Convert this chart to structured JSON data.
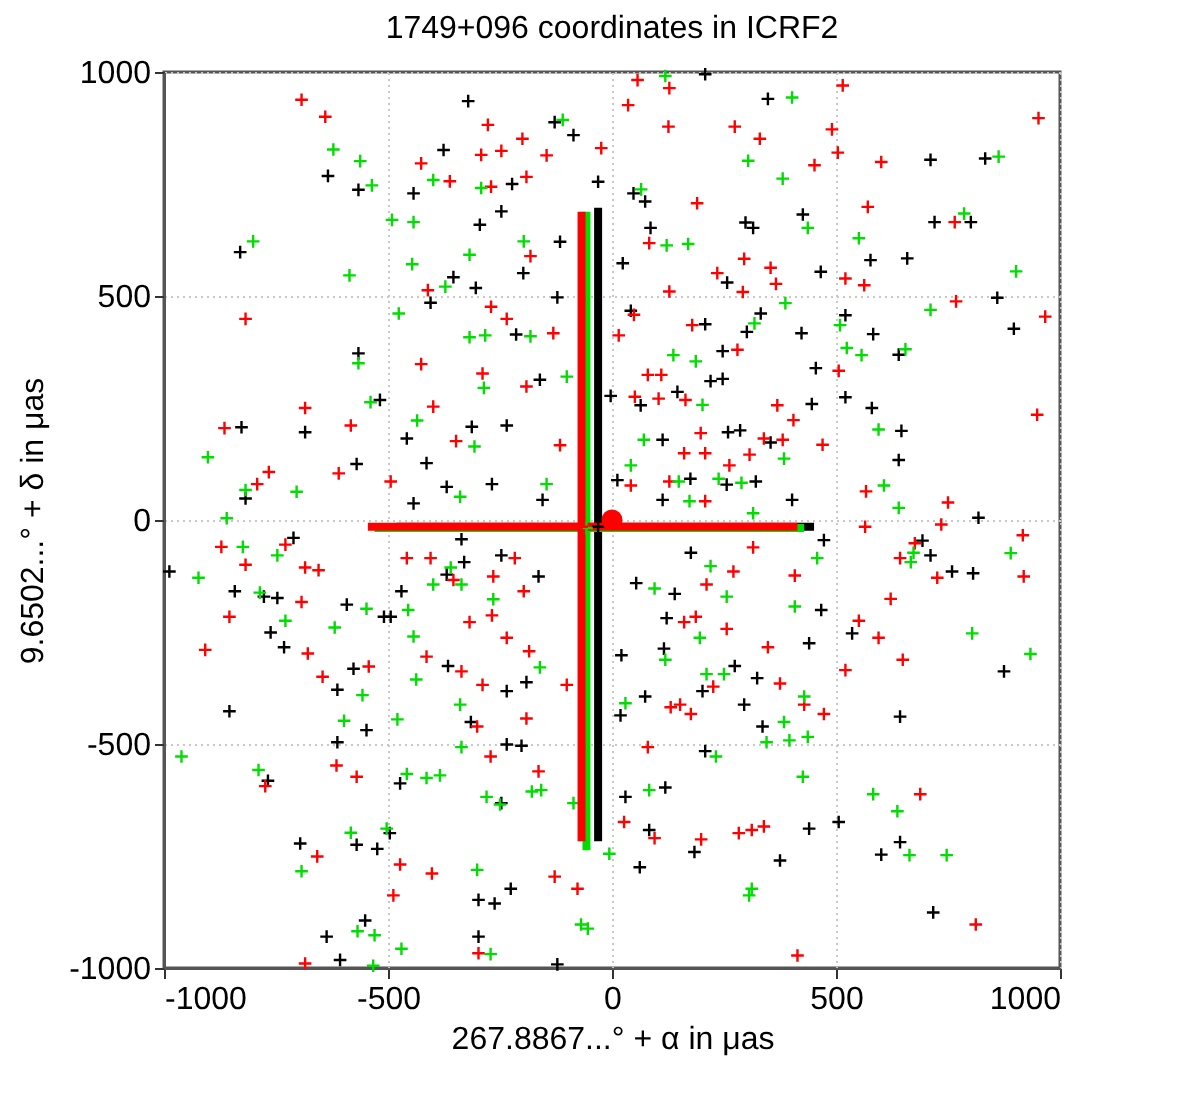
{
  "chart_data": {
    "type": "scatter",
    "title": "1749+096 coordinates in ICRF2",
    "xlabel": "267.8867...° + α in μas",
    "ylabel": "9.6502...° + δ in μas",
    "xlim": [
      -1000,
      1000
    ],
    "ylim": [
      -1000,
      1000
    ],
    "xticks": [
      -1000,
      -500,
      0,
      500,
      1000
    ],
    "yticks": [
      -1000,
      -500,
      0,
      500,
      1000
    ],
    "grid": true,
    "marker": "cross",
    "series": [
      {
        "color": "#000000",
        "x": [
          -321,
          -376,
          -634,
          -566,
          -830,
          -443,
          -223,
          -247,
          -295,
          -116,
          -198,
          -86,
          -128,
          -31,
          -354,
          -304,
          -405,
          -214,
          -566,
          -518,
          -685,
          -827,
          -818,
          -570,
          -458,
          -313,
          -235,
          -161,
          -414,
          -369,
          -443,
          -268,
          -155,
          -122,
          208,
          348,
          48,
          74,
          86,
          298,
          315,
          426,
          24,
          257,
          466,
          711,
          833,
          720,
          801,
          577,
          659,
          860,
          897,
          42,
          332,
          208,
          301,
          423,
          521,
          583,
          247,
          455,
          640,
          220,
          247,
          146,
          446,
          521,
          580,
          -3,
          64,
          259,
          286,
          354,
          646,
          640,
          113,
          175,
          321,
          256,
          113,
          402,
          12,
          818,
          -988,
          -842,
          -777,
          -747,
          -762,
          -732,
          -592,
          -577,
          -613,
          -854,
          -548,
          -613,
          -509,
          -494,
          -470,
          -768,
          -473,
          -696,
          -570,
          -524,
          -496,
          -637,
          -607,
          -551,
          -298,
          -298,
          -262,
          -226,
          -122,
          -235,
          -235,
          -202,
          -247,
          -315,
          -366,
          -191,
          -369,
          -330,
          -247,
          -164,
          -711,
          -336,
          473,
          693,
          711,
          759,
          806,
          536,
          467,
          440,
          274,
          324,
          295,
          336,
          202,
          122,
          116,
          21,
          74,
          19,
          208,
          30,
          119,
          83,
          184,
          62,
          375,
          506,
          440,
          643,
          601,
          717,
          875,
          643,
          176,
          54,
          140
        ],
        "values": [
          935,
          826,
          768,
          737,
          598,
          729,
          750,
          689,
          659,
          621,
          551,
          859,
          888,
          755,
          542,
          518,
          485,
          414,
          372,
          268,
          196,
          207,
          48,
          125,
          182,
          208,
          211,
          313,
          127,
          74,
          37,
          80,
          45,
          497,
          995,
          940,
          729,
          711,
          652,
          664,
          652,
          682,
          573,
          530,
          554,
          804,
          807,
          665,
          665,
          580,
          584,
          496,
          427,
          467,
          461,
          437,
          420,
          417,
          457,
          415,
          377,
          339,
          369,
          310,
          315,
          286,
          259,
          274,
          250,
          277,
          256,
          196,
          200,
          173,
          199,
          134,
          179,
          92,
          86,
          79,
          45,
          45,
          89,
          5,
          -115,
          -159,
          -171,
          -174,
          -251,
          -284,
          -189,
          -332,
          -379,
          -427,
          -469,
          -496,
          -216,
          -216,
          -159,
          -582,
          -588,
          -722,
          -725,
          -734,
          -699,
          -930,
          -982,
          -894,
          -930,
          -848,
          -856,
          -823,
          -992,
          -382,
          -501,
          -504,
          -632,
          -451,
          -326,
          -362,
          -122,
          -94,
          -79,
          -126,
          -40,
          -43,
          -45,
          -46,
          -79,
          -115,
          -119,
          -253,
          -201,
          -275,
          -326,
          -353,
          -412,
          -461,
          -382,
          -219,
          -287,
          -302,
          -394,
          -436,
          -516,
          -618,
          -597,
          -692,
          -741,
          -775,
          -760,
          -674,
          -689,
          -719,
          -747,
          -876,
          -338,
          -439,
          -73,
          -141,
          -165
        ]
      },
      {
        "color": "#ff0000",
        "x": [
          -693,
          -640,
          -818,
          -865,
          -792,
          -766,
          -685,
          -583,
          -610,
          -426,
          -292,
          -247,
          -277,
          -200,
          -146,
          -191,
          -362,
          -270,
          -426,
          -289,
          -235,
          -270,
          -182,
          -131,
          -24,
          -411,
          -348,
          -191,
          -399,
          -116,
          -494,
          57,
          128,
          36,
          126,
          274,
          330,
          491,
          515,
          452,
          190,
          504,
          601,
          571,
          765,
          952,
          83,
          295,
          354,
          366,
          128,
          292,
          235,
          521,
          563,
          768,
          967,
          49,
          179,
          280,
          15,
          80,
          110,
          51,
          104,
          164,
          369,
          405,
          470,
          506,
          949,
          198,
          339,
          381,
          161,
          208,
          262,
          42,
          128,
          208,
          307,
          567,
          750,
          -872,
          -818,
          -729,
          -685,
          -655,
          -693,
          -854,
          -908,
          -679,
          -646,
          -543,
          -615,
          -570,
          -774,
          -658,
          -685,
          -488,
          -473,
          -402,
          -414,
          -336,
          -289,
          -318,
          -268,
          -235,
          -185,
          -101,
          -191,
          -301,
          -271,
          -164,
          -128,
          -77,
          -298,
          -458,
          -405,
          -354,
          -265,
          -217,
          -197,
          565,
          735,
          917,
          676,
          643,
          726,
          919,
          622,
          551,
          595,
          649,
          521,
          408,
          271,
          211,
          161,
          187,
          256,
          348,
          375,
          429,
          473,
          131,
          152,
          176,
          226,
          80,
          688,
          27,
          95,
          199,
          283,
          312,
          339,
          812,
          414,
          315
        ],
        "values": [
          938,
          900,
          449,
          205,
          80,
          107,
          250,
          211,
          104,
          796,
          815,
          824,
          882,
          851,
          814,
          766,
          756,
          744,
          348,
          327,
          449,
          476,
          589,
          417,
          830,
          513,
          176,
          298,
          253,
          167,
          86,
          982,
          964,
          926,
          878,
          878,
          851,
          872,
          970,
          792,
          707,
          820,
          799,
          699,
          665,
          897,
          618,
          583,
          563,
          527,
          510,
          509,
          551,
          539,
          524,
          488,
          454,
          458,
          435,
          380,
          412,
          324,
          324,
          275,
          271,
          268,
          256,
          223,
          168,
          333,
          235,
          194,
          182,
          179,
          149,
          149,
          122,
          77,
          86,
          42,
          146,
          64,
          39,
          -60,
          -100,
          -55,
          -106,
          -112,
          -183,
          -216,
          -290,
          -298,
          -350,
          -327,
          -548,
          -573,
          -594,
          -751,
          -990,
          -838,
          -769,
          -789,
          -305,
          -338,
          -368,
          -228,
          -213,
          -263,
          -293,
          -368,
          -443,
          -461,
          -528,
          -561,
          -796,
          -823,
          -967,
          -85,
          -85,
          -134,
          -126,
          -85,
          -159,
          -15,
          -10,
          -34,
          -52,
          -85,
          -129,
          -126,
          -176,
          -225,
          -263,
          -312,
          -335,
          -124,
          -115,
          -144,
          -228,
          -216,
          -243,
          -284,
          -365,
          -412,
          -433,
          -418,
          -412,
          -433,
          -372,
          -507,
          -612,
          -674,
          -710,
          -713,
          -699,
          -692,
          -684,
          -903,
          -972,
          -61
        ]
      },
      {
        "color": "#00dd00",
        "x": [
          -801,
          -622,
          -562,
          -536,
          -491,
          -586,
          -443,
          -399,
          -292,
          -197,
          -318,
          -446,
          -372,
          -476,
          -318,
          -283,
          -182,
          -566,
          -539,
          -435,
          -286,
          -902,
          -818,
          -704,
          -307,
          -146,
          -101,
          -110,
          -339,
          119,
          65,
          402,
          304,
          381,
          437,
          170,
          122,
          551,
          786,
          863,
          902,
          711,
          655,
          524,
          557,
          509,
          387,
          318,
          137,
          187,
          202,
          595,
          607,
          640,
          384,
          289,
          71,
          42,
          173,
          238,
          149,
          315,
          -860,
          -923,
          -824,
          -747,
          -786,
          -729,
          -619,
          -548,
          -455,
          -443,
          -437,
          -557,
          -598,
          -479,
          -961,
          -789,
          -458,
          -414,
          -384,
          -339,
          -336,
          -280,
          -250,
          -179,
          -158,
          -86,
          -583,
          -693,
          -503,
          -301,
          -568,
          -530,
          -470,
          -271,
          -533,
          -69,
          -54,
          -161,
          -399,
          -336,
          -360,
          -265,
          458,
          408,
          256,
          196,
          250,
          211,
          429,
          384,
          345,
          396,
          437,
          232,
          426,
          583,
          637,
          664,
          747,
          804,
          934,
          890,
          673,
          667,
          312,
          306,
          83,
          -6,
          119,
          30,
          220,
          95
        ],
        "values": [
          622,
          827,
          801,
          747,
          670,
          546,
          665,
          759,
          741,
          622,
          592,
          571,
          521,
          461,
          408,
          412,
          410,
          350,
          263,
          222,
          295,
          140,
          67,
          63,
          164,
          80,
          320,
          893,
          52,
          991,
          738,
          943,
          802,
          762,
          652,
          616,
          613,
          629,
          684,
          811,
          555,
          469,
          381,
          384,
          368,
          435,
          484,
          439,
          368,
          354,
          257,
          202,
          77,
          27,
          137,
          83,
          179,
          122,
          42,
          92,
          86,
          15,
          4,
          -129,
          -60,
          -79,
          -162,
          -225,
          -240,
          -198,
          -201,
          -260,
          -356,
          -391,
          -448,
          -445,
          -528,
          -558,
          -567,
          -576,
          -570,
          -412,
          -507,
          -618,
          -635,
          -606,
          -603,
          -632,
          -698,
          -784,
          -689,
          -781,
          -918,
          -927,
          -957,
          -969,
          -995,
          -903,
          -912,
          -329,
          -144,
          -144,
          -106,
          -177,
          -85,
          -193,
          -171,
          -263,
          -344,
          -344,
          -394,
          -451,
          -496,
          -492,
          -484,
          -528,
          -573,
          -612,
          -650,
          -748,
          -748,
          -253,
          -299,
          -74,
          -73,
          -94,
          -823,
          -838,
          -603,
          -745,
          -312,
          -409,
          -103,
          -153
        ]
      },
      {
        "color": "#000000",
        "x": [
          -31
        ],
        "values": [
          -15
        ],
        "errors": [
          [
            -717,
            697
          ]
        ],
        "xerrors": [
          [
            -480,
            451
          ]
        ]
      },
      {
        "color": "#00dd00",
        "x": [
          -57
        ],
        "values": [
          -18
        ],
        "errors": [
          [
            -737,
            688
          ]
        ],
        "xerrors": [
          [
            -530,
            429
          ]
        ]
      },
      {
        "color": "#ff0000",
        "x": [
          -68
        ],
        "values": [
          -15
        ],
        "errors": [
          [
            -717,
            688
          ]
        ],
        "xerrors": [
          [
            -545,
            414
          ]
        ]
      },
      {
        "color": "#ff0000",
        "marker": "circle",
        "x": [
          0
        ],
        "values": [
          0
        ]
      }
    ]
  }
}
